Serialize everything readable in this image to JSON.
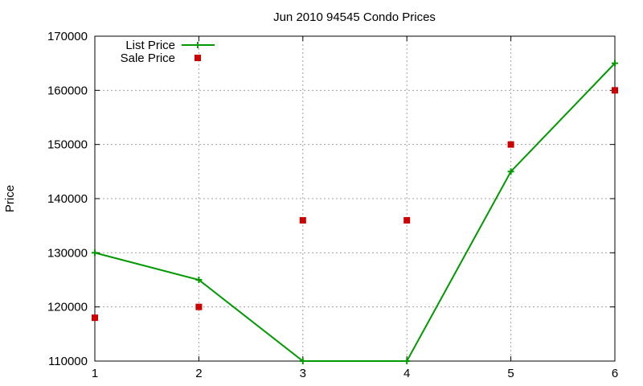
{
  "chart_data": {
    "type": "line",
    "title": "Jun 2010 94545 Condo Prices",
    "xlabel": "",
    "ylabel": "Price",
    "x": [
      1,
      2,
      3,
      4,
      5,
      6
    ],
    "xlim": [
      1,
      6
    ],
    "ylim": [
      110000,
      170000
    ],
    "x_ticks": [
      1,
      2,
      3,
      4,
      5,
      6
    ],
    "y_ticks": [
      110000,
      120000,
      130000,
      140000,
      150000,
      160000,
      170000
    ],
    "grid": true,
    "legend_position": "top-left",
    "series": [
      {
        "name": "List Price",
        "style": "line-with-plus-markers",
        "color": "#009900",
        "values": [
          130000,
          125000,
          110000,
          110000,
          145000,
          165000
        ]
      },
      {
        "name": "Sale Price",
        "style": "square-markers",
        "color": "#cc0000",
        "values": [
          118000,
          120000,
          136000,
          136000,
          150000,
          160000
        ]
      }
    ]
  }
}
